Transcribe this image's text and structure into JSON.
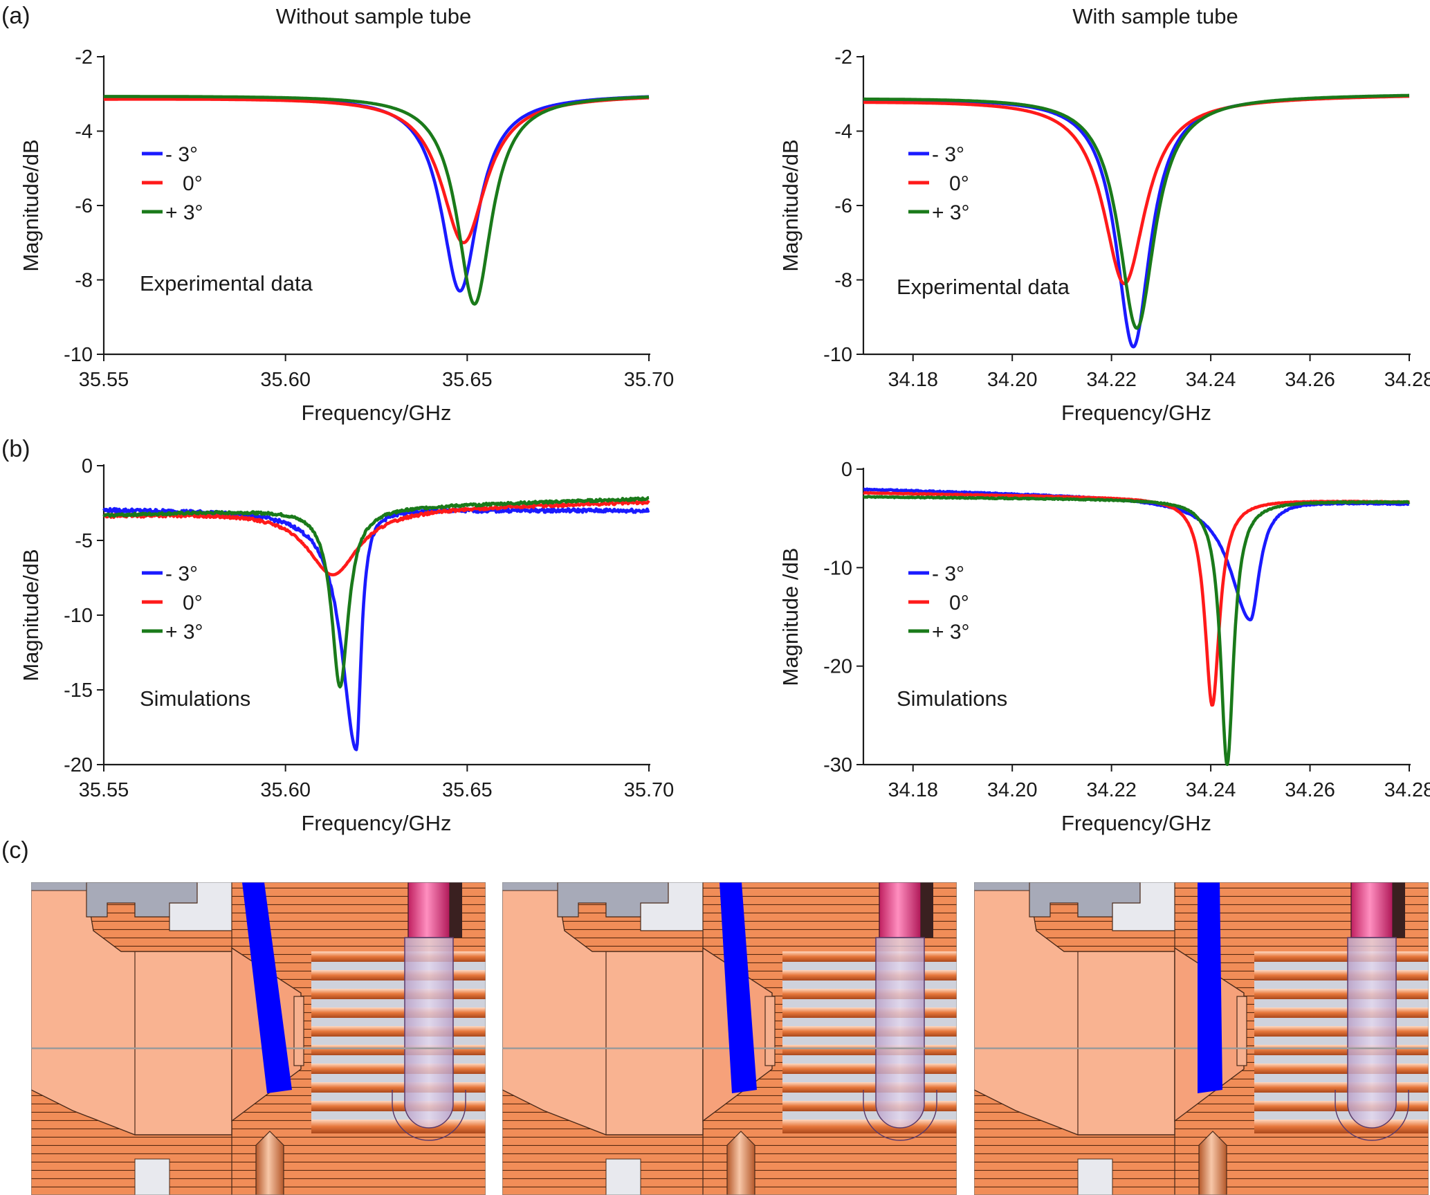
{
  "panel_labels": {
    "a": "(a)",
    "b": "(b)",
    "c": "(c)"
  },
  "column_titles": {
    "left": "Without sample tube",
    "right": "With sample tube"
  },
  "colors": {
    "minus3": "#1a1aff",
    "zero": "#ff1a1a",
    "plus3": "#1a7a1a",
    "axis": "#1a1a1a"
  },
  "chart_data": [
    {
      "id": "a-left",
      "type": "line",
      "title": "Without sample tube",
      "annotation": "Experimental data",
      "xlabel": "Frequency/GHz",
      "ylabel": "Magnitude/dB",
      "xlim": [
        35.55,
        35.7
      ],
      "ylim": [
        -10,
        -2
      ],
      "xticks": [
        35.55,
        35.6,
        35.65,
        35.7
      ],
      "xtick_labels": [
        "35.55",
        "35.60",
        "35.65",
        "35.70"
      ],
      "yticks": [
        -2,
        -4,
        -6,
        -8,
        -10
      ],
      "ytick_labels": [
        "-2",
        "-4",
        "-6",
        "-8",
        "-10"
      ],
      "legend_position": "upper-left",
      "series": [
        {
          "name": "- 3°",
          "color": "#1a1aff",
          "shape": "lorentz",
          "base": -3.1,
          "baseEnd": -3.0,
          "f0": 35.648,
          "depth": -8.3,
          "hwhm": 0.0062,
          "noise": 0
        },
        {
          "name": "0°",
          "color": "#ff1a1a",
          "shape": "lorentz",
          "base": -3.12,
          "baseEnd": -3.02,
          "f0": 35.649,
          "depth": -7.0,
          "hwhm": 0.0075,
          "noise": 0
        },
        {
          "name": "+ 3°",
          "color": "#1a7a1a",
          "shape": "lorentz",
          "base": -3.05,
          "baseEnd": -3.0,
          "f0": 35.652,
          "depth": -8.65,
          "hwhm": 0.0058,
          "noise": 0
        }
      ]
    },
    {
      "id": "a-right",
      "type": "line",
      "title": "With sample tube",
      "annotation": "Experimental data",
      "xlabel": "Frequency/GHz",
      "ylabel": "Magnitude/dB",
      "xlim": [
        34.17,
        34.28
      ],
      "ylim": [
        -10,
        -2
      ],
      "xticks": [
        34.18,
        34.2,
        34.22,
        34.24,
        34.26,
        34.28
      ],
      "xtick_labels": [
        "34.18",
        "34.20",
        "34.22",
        "34.24",
        "34.26",
        "34.28"
      ],
      "yticks": [
        -2,
        -4,
        -6,
        -8,
        -10
      ],
      "ytick_labels": [
        "-2",
        "-4",
        "-6",
        "-8",
        "-10"
      ],
      "legend_position": "upper-left",
      "series": [
        {
          "name": "- 3°",
          "color": "#1a1aff",
          "shape": "lorentz",
          "base": -3.12,
          "baseEnd": -3.02,
          "f0": 34.2244,
          "depth": -9.8,
          "hwhm": 0.0042,
          "noise": 0
        },
        {
          "name": "0°",
          "color": "#ff1a1a",
          "shape": "lorentz",
          "base": -3.18,
          "baseEnd": -3.02,
          "f0": 34.2226,
          "depth": -8.1,
          "hwhm": 0.0052,
          "noise": 0
        },
        {
          "name": "+ 3°",
          "color": "#1a7a1a",
          "shape": "lorentz",
          "base": -3.1,
          "baseEnd": -3.0,
          "f0": 34.2251,
          "depth": -9.3,
          "hwhm": 0.0044,
          "noise": 0
        }
      ]
    },
    {
      "id": "b-left",
      "type": "line",
      "title": "",
      "annotation": "Simulations",
      "xlabel": "Frequency/GHz",
      "ylabel": "Magnitude/dB",
      "xlim": [
        35.55,
        35.7
      ],
      "ylim": [
        -20,
        0
      ],
      "xticks": [
        35.55,
        35.6,
        35.65,
        35.7
      ],
      "xtick_labels": [
        "35.55",
        "35.60",
        "35.65",
        "35.70"
      ],
      "yticks": [
        0,
        -5,
        -10,
        -15,
        -20
      ],
      "ytick_labels": [
        "0",
        "-5",
        "-10",
        "-15",
        "-20"
      ],
      "legend_position": "upper-left",
      "series": [
        {
          "name": "- 3°",
          "color": "#1a1aff",
          "shape": "fano",
          "base": -2.9,
          "baseEnd": -3.0,
          "f0": 35.6195,
          "depth": -19.0,
          "hwhm": 0.0016,
          "skew": 3.0,
          "noise": 0.12
        },
        {
          "name": "0°",
          "color": "#ff1a1a",
          "shape": "lorentz",
          "base": -3.3,
          "baseEnd": -2.4,
          "f0": 35.613,
          "depth": -7.3,
          "hwhm": 0.0085,
          "noise": 0.1
        },
        {
          "name": "+ 3°",
          "color": "#1a7a1a",
          "shape": "lorentz",
          "base": -3.3,
          "baseEnd": -2.2,
          "f0": 35.615,
          "depth": -14.8,
          "hwhm": 0.0028,
          "noise": 0.08
        }
      ]
    },
    {
      "id": "b-right",
      "type": "line",
      "title": "",
      "annotation": "Simulations",
      "xlabel": "Frequency/GHz",
      "ylabel": "Magnitude /dB",
      "xlim": [
        34.17,
        34.28
      ],
      "ylim": [
        -30,
        0
      ],
      "xticks": [
        34.18,
        34.2,
        34.22,
        34.24,
        34.26,
        34.28
      ],
      "xtick_labels": [
        "34.18",
        "34.20",
        "34.22",
        "34.24",
        "34.26",
        "34.28"
      ],
      "yticks": [
        0,
        -10,
        -20,
        -30
      ],
      "ytick_labels": [
        "0",
        "-10",
        "-20",
        "-30"
      ],
      "legend_position": "upper-left",
      "series": [
        {
          "name": "- 3°",
          "color": "#1a1aff",
          "shape": "fano",
          "base": -2.0,
          "baseEnd": -3.5,
          "f0": 34.248,
          "depth": -15.3,
          "hwhm": 0.0022,
          "skew": 2.2,
          "noise": 0.06
        },
        {
          "name": "0°",
          "color": "#ff1a1a",
          "shape": "lorentz",
          "base": -2.4,
          "baseEnd": -3.3,
          "f0": 34.2403,
          "depth": -24.0,
          "hwhm": 0.0018,
          "noise": 0.03
        },
        {
          "name": "+ 3°",
          "color": "#1a7a1a",
          "shape": "lorentz",
          "base": -2.8,
          "baseEnd": -3.3,
          "f0": 34.2433,
          "depth": -30.0,
          "hwhm": 0.0016,
          "noise": 0.05
        }
      ]
    }
  ],
  "illustration": {
    "description_label": "(c)",
    "views": [
      {
        "name": "view-minus-3",
        "tilt_degrees": -3
      },
      {
        "name": "view-zero",
        "tilt_degrees": 0
      },
      {
        "name": "view-plus-3",
        "tilt_degrees": 3
      }
    ],
    "colors": {
      "body": "#f9b391",
      "hatched": "#f18d58",
      "metal": "#a7aab8",
      "rod": "#0000ff",
      "tube": "#e8468a",
      "plate": "#cfd2dc",
      "line": "#4a2a1a"
    }
  }
}
